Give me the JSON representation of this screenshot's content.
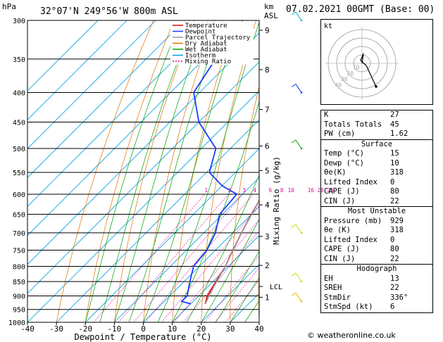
{
  "header": {
    "location": "32°07'N  249°56'W  800m  ASL",
    "datetime": "07.02.2021  00GMT  (Base: 00)",
    "hpa_label": "hPa",
    "km_label": "km",
    "asl_label": "ASL"
  },
  "footer": {
    "copyright": "© weatheronline.co.uk"
  },
  "chart_data": {
    "type": "line",
    "xlabel": "Dewpoint / Temperature (°C)",
    "ylabel_right": "Mixing Ratio (g/kg)",
    "xlim": [
      -40,
      40
    ],
    "pressure_ticks": [
      300,
      350,
      400,
      450,
      500,
      550,
      600,
      650,
      700,
      750,
      800,
      850,
      900,
      950,
      1000
    ],
    "temp_ticks": [
      -40,
      -30,
      -20,
      -10,
      0,
      10,
      20,
      30,
      40
    ],
    "km_ticks": [
      {
        "label": "9",
        "p": 312
      },
      {
        "label": "8",
        "p": 365
      },
      {
        "label": "7",
        "p": 428
      },
      {
        "label": "6",
        "p": 495
      },
      {
        "label": "5",
        "p": 546
      },
      {
        "label": "4",
        "p": 626
      },
      {
        "label": "3",
        "p": 710
      },
      {
        "label": "2",
        "p": 797
      },
      {
        "label": "1",
        "p": 905
      }
    ],
    "lcl": {
      "label": "LCL",
      "p": 867
    },
    "mixing_ratio_labels": [
      "1",
      "2",
      "3",
      "4",
      "6",
      "8",
      "10",
      "16",
      "20",
      "25"
    ],
    "legend": [
      {
        "name": "Temperature",
        "color": "#e00000"
      },
      {
        "name": "Dewpoint",
        "color": "#1a3cff"
      },
      {
        "name": "Parcel Trajectory",
        "color": "#999999"
      },
      {
        "name": "Dry Adiabat",
        "color": "#e07000"
      },
      {
        "name": "Wet Adiabat",
        "color": "#00a000"
      },
      {
        "name": "Isotherm",
        "color": "#00a0e0"
      },
      {
        "name": "Mixing Ratio",
        "color": "#e000a0"
      }
    ],
    "series": [
      {
        "name": "Temperature",
        "color": "#e00000",
        "points": [
          [
            929,
            15
          ],
          [
            900,
            13
          ],
          [
            850,
            11
          ],
          [
            800,
            9
          ],
          [
            750,
            6
          ],
          [
            700,
            3
          ],
          [
            650,
            0
          ],
          [
            600,
            -3
          ],
          [
            550,
            -7
          ],
          [
            500,
            -12
          ],
          [
            450,
            -18
          ],
          [
            400,
            -23
          ],
          [
            350,
            -30
          ],
          [
            300,
            -40
          ]
        ]
      },
      {
        "name": "Dewpoint",
        "color": "#1a3cff",
        "points": [
          [
            929,
            10
          ],
          [
            920,
            6
          ],
          [
            900,
            6
          ],
          [
            850,
            2
          ],
          [
            800,
            -2
          ],
          [
            750,
            -3
          ],
          [
            700,
            -6
          ],
          [
            650,
            -11
          ],
          [
            600,
            -12
          ],
          [
            580,
            -20
          ],
          [
            550,
            -29
          ],
          [
            500,
            -35
          ],
          [
            450,
            -50
          ],
          [
            400,
            -62
          ],
          [
            350,
            -66
          ],
          [
            300,
            -70
          ]
        ]
      },
      {
        "name": "Parcel Trajectory",
        "color": "#999999",
        "points": [
          [
            929,
            15
          ],
          [
            867,
            12
          ],
          [
            800,
            9
          ],
          [
            700,
            3
          ],
          [
            600,
            -3
          ],
          [
            500,
            -12
          ],
          [
            400,
            -25
          ],
          [
            300,
            -45
          ]
        ]
      }
    ]
  },
  "wind_barbs": [
    {
      "p": 300,
      "color": "#00b0d0"
    },
    {
      "p": 400,
      "color": "#0030ff"
    },
    {
      "p": 500,
      "color": "#00a000"
    },
    {
      "p": 700,
      "color": "#c8e000"
    },
    {
      "p": 850,
      "color": "#c8e000"
    },
    {
      "p": 920,
      "color": "#e8c000"
    }
  ],
  "hodograph": {
    "label": "kt",
    "ring_labels": [
      "10",
      "20",
      "30",
      "40"
    ]
  },
  "indices": [
    {
      "label": "K",
      "value": "27"
    },
    {
      "label": "Totals Totals",
      "value": "45"
    },
    {
      "label": "PW (cm)",
      "value": "1.62"
    }
  ],
  "surface": {
    "title": "Surface",
    "rows": [
      {
        "label": "Temp (°C)",
        "value": "15"
      },
      {
        "label": "Dewp (°C)",
        "value": "10"
      },
      {
        "label": "θe(K)",
        "value": "318"
      },
      {
        "label": "Lifted Index",
        "value": "0"
      },
      {
        "label": "CAPE (J)",
        "value": "80"
      },
      {
        "label": "CIN (J)",
        "value": "22"
      }
    ]
  },
  "most_unstable": {
    "title": "Most Unstable",
    "rows": [
      {
        "label": "Pressure (mb)",
        "value": "929"
      },
      {
        "label": "θe (K)",
        "value": "318"
      },
      {
        "label": "Lifted Index",
        "value": "0"
      },
      {
        "label": "CAPE (J)",
        "value": "80"
      },
      {
        "label": "CIN (J)",
        "value": "22"
      }
    ]
  },
  "hodograph_box": {
    "title": "Hodograph",
    "rows": [
      {
        "label": "EH",
        "value": "13"
      },
      {
        "label": "SREH",
        "value": "22"
      },
      {
        "label": "StmDir",
        "value": "336°"
      },
      {
        "label": "StmSpd (kt)",
        "value": "6"
      }
    ]
  }
}
